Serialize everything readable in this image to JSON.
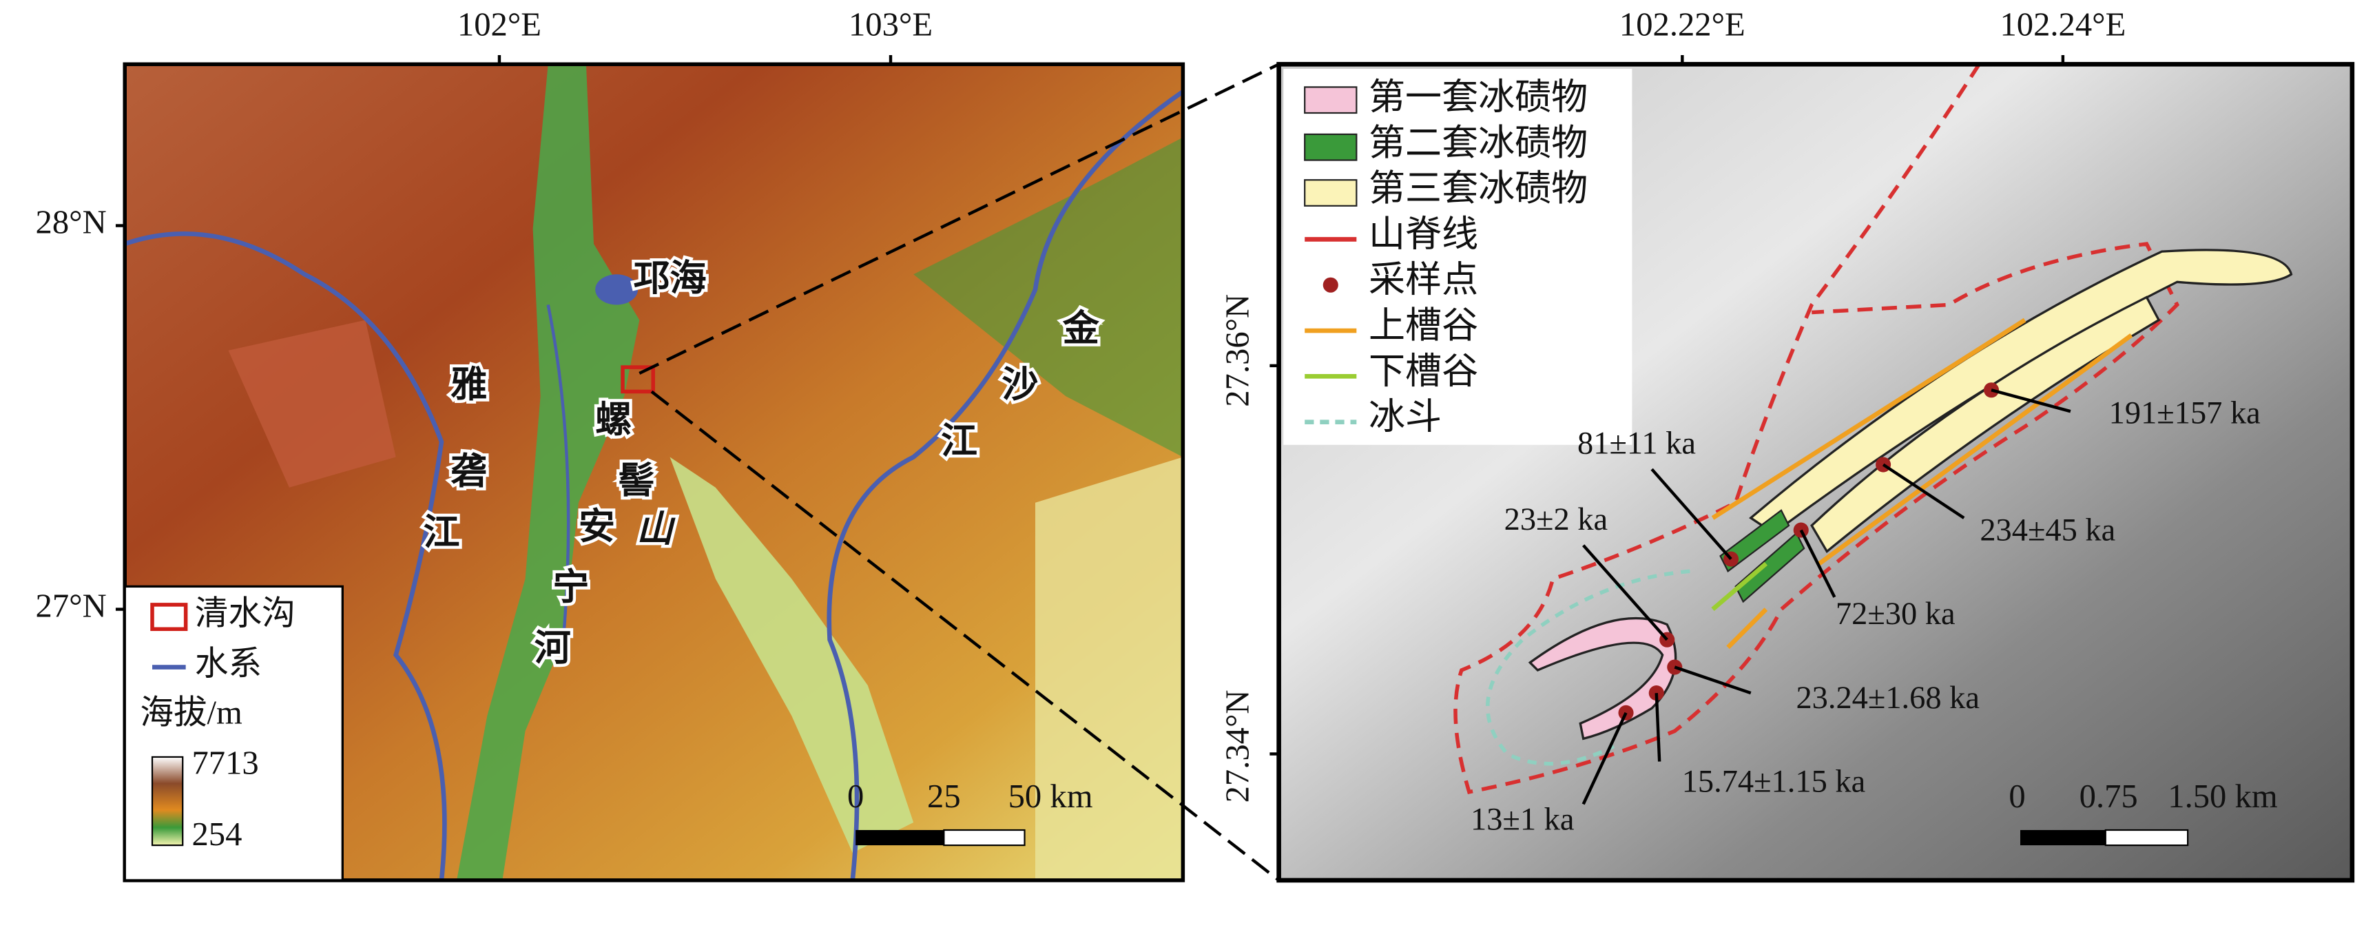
{
  "left_map": {
    "x_ticks": [
      "102°E",
      "103°E"
    ],
    "y_ticks": [
      "28°N",
      "27°N"
    ],
    "place_labels": [
      "邛海",
      "雅",
      "砻",
      "江",
      "螺",
      "髻",
      "山",
      "安",
      "宁",
      "河",
      "金",
      "沙",
      "江"
    ],
    "legend": {
      "items": [
        "清水沟",
        "水系"
      ],
      "elevation_title": "海拔/m",
      "elevation_max": "7713",
      "elevation_min": "254"
    },
    "scale_bar": [
      "0",
      "25",
      "50 km"
    ]
  },
  "right_map": {
    "x_ticks": [
      "102.22°E",
      "102.24°E"
    ],
    "y_ticks": [
      "27.36°N",
      "27.34°N"
    ],
    "legend": [
      "第一套冰碛物",
      "第二套冰碛物",
      "第三套冰碛物",
      "山脊线",
      "采样点",
      "上槽谷",
      "下槽谷",
      "冰斗"
    ],
    "sample_ages": [
      "81±11 ka",
      "23±2 ka",
      "72±30 ka",
      "234±45 ka",
      "191±157 ka",
      "23.24±1.68 ka",
      "15.74±1.15 ka",
      "13±1 ka"
    ],
    "scale_bar": [
      "0",
      "0.75",
      "1.50 km"
    ]
  }
}
